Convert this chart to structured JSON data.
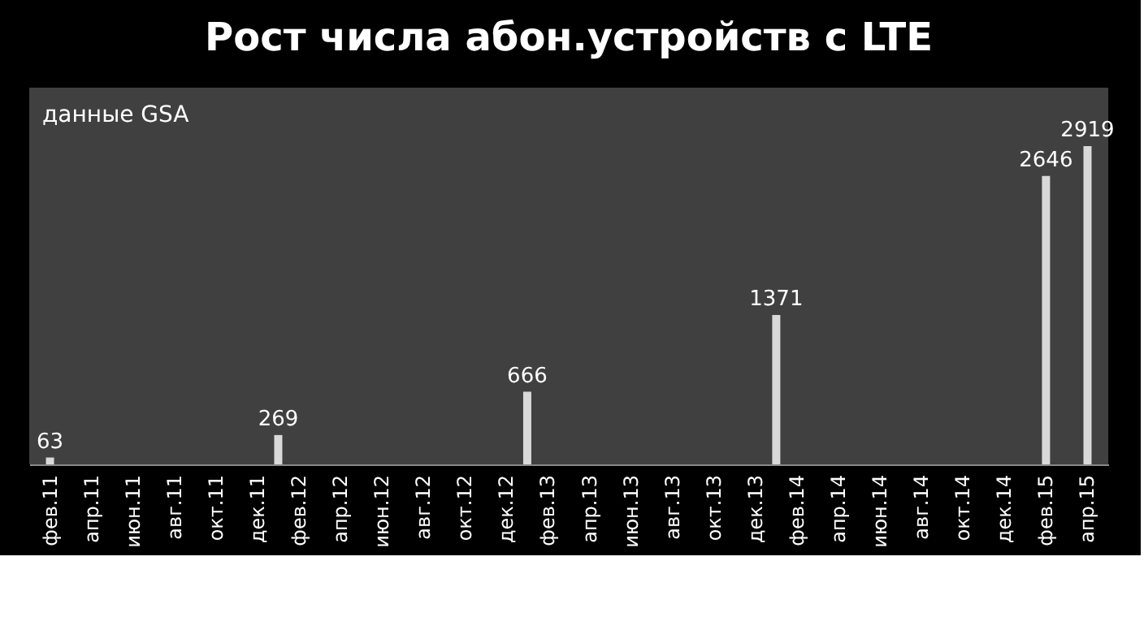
{
  "chart_data": {
    "type": "bar",
    "title": "Рост числа абон.устройств с LTE",
    "categories": [
      "фев.11",
      null,
      "апр.11",
      null,
      "июн.11",
      null,
      "авг.11",
      null,
      "окт.11",
      null,
      "дек.11",
      null,
      "фев.12",
      null,
      "апр.12",
      null,
      "июн.12",
      null,
      "авг.12",
      null,
      "окт.12",
      null,
      "дек.12",
      null,
      "фев.13",
      null,
      "апр.13",
      null,
      "июн.13",
      null,
      "авг.13",
      null,
      "окт.13",
      null,
      "дек.13",
      null,
      "фев.14",
      null,
      "апр.14",
      null,
      "июн.14",
      null,
      "авг.14",
      null,
      "окт.14",
      null,
      "дек.14",
      null,
      "фев.15",
      null,
      "апр.15"
    ],
    "values": [
      63,
      null,
      null,
      null,
      null,
      null,
      null,
      null,
      null,
      null,
      null,
      269,
      null,
      null,
      null,
      null,
      null,
      null,
      null,
      null,
      null,
      null,
      null,
      666,
      null,
      null,
      null,
      null,
      null,
      null,
      null,
      null,
      null,
      null,
      null,
      1371,
      null,
      null,
      null,
      null,
      null,
      null,
      null,
      null,
      null,
      null,
      null,
      null,
      2646,
      null,
      2919
    ],
    "color": "#d9d9d9",
    "data_labels": true,
    "grid": false,
    "annotations": [
      "данные GSA"
    ]
  }
}
